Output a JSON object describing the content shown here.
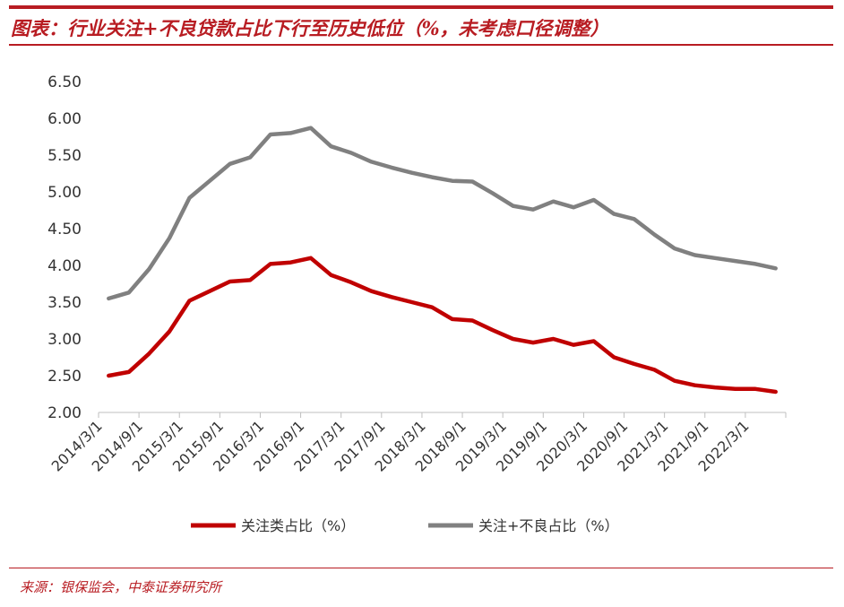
{
  "header": {
    "title_prefix": "图表：",
    "title": "行业关注+不良贷款占比下行至历史低位（%，未考虑口径调整）"
  },
  "footer": {
    "source": "来源：银保监会，中泰证券研究所"
  },
  "colors": {
    "brand_red": "#b81c22",
    "series_red": "#c00000",
    "series_gray": "#808080"
  },
  "chart_data": {
    "type": "line",
    "title": "",
    "xlabel": "",
    "ylabel": "",
    "ylim": [
      2.0,
      6.5
    ],
    "yticks": [
      "2.00",
      "2.50",
      "3.00",
      "3.50",
      "4.00",
      "4.50",
      "5.00",
      "5.50",
      "6.00",
      "6.50"
    ],
    "xticks": [
      "2014/3/1",
      "2014/9/1",
      "2015/3/1",
      "2015/9/1",
      "2016/3/1",
      "2016/9/1",
      "2017/3/1",
      "2017/9/1",
      "2018/3/1",
      "2018/9/1",
      "2019/3/1",
      "2019/9/1",
      "2020/3/1",
      "2020/9/1",
      "2021/3/1",
      "2021/9/1",
      "2022/3/1"
    ],
    "x": [
      "2014Q1",
      "2014Q2",
      "2014Q3",
      "2014Q4",
      "2015Q1",
      "2015Q2",
      "2015Q3",
      "2015Q4",
      "2016Q1",
      "2016Q2",
      "2016Q3",
      "2016Q4",
      "2017Q1",
      "2017Q2",
      "2017Q3",
      "2017Q4",
      "2018Q1",
      "2018Q2",
      "2018Q3",
      "2018Q4",
      "2019Q1",
      "2019Q2",
      "2019Q3",
      "2019Q4",
      "2020Q1",
      "2020Q2",
      "2020Q3",
      "2020Q4",
      "2021Q1",
      "2021Q2",
      "2021Q3",
      "2021Q4",
      "2022Q1",
      "2022Q2"
    ],
    "grid": false,
    "legend_position": "bottom",
    "series": [
      {
        "name": "关注类占比（%）",
        "color": "#c00000",
        "values": [
          2.5,
          2.55,
          2.8,
          3.1,
          3.52,
          3.65,
          3.78,
          3.8,
          4.02,
          4.04,
          4.1,
          3.87,
          3.77,
          3.65,
          3.57,
          3.5,
          3.43,
          3.27,
          3.25,
          3.12,
          3.0,
          2.95,
          3.0,
          2.92,
          2.97,
          2.75,
          2.66,
          2.58,
          2.43,
          2.37,
          2.34,
          2.32,
          2.32,
          2.28
        ]
      },
      {
        "name": "关注+不良占比（%）",
        "color": "#808080",
        "values": [
          3.55,
          3.63,
          3.95,
          4.37,
          4.92,
          5.15,
          5.38,
          5.47,
          5.78,
          5.8,
          5.87,
          5.62,
          5.53,
          5.41,
          5.33,
          5.26,
          5.2,
          5.15,
          5.14,
          4.98,
          4.81,
          4.76,
          4.87,
          4.79,
          4.89,
          4.7,
          4.63,
          4.42,
          4.23,
          4.14,
          4.1,
          4.06,
          4.02,
          3.96
        ]
      }
    ]
  }
}
